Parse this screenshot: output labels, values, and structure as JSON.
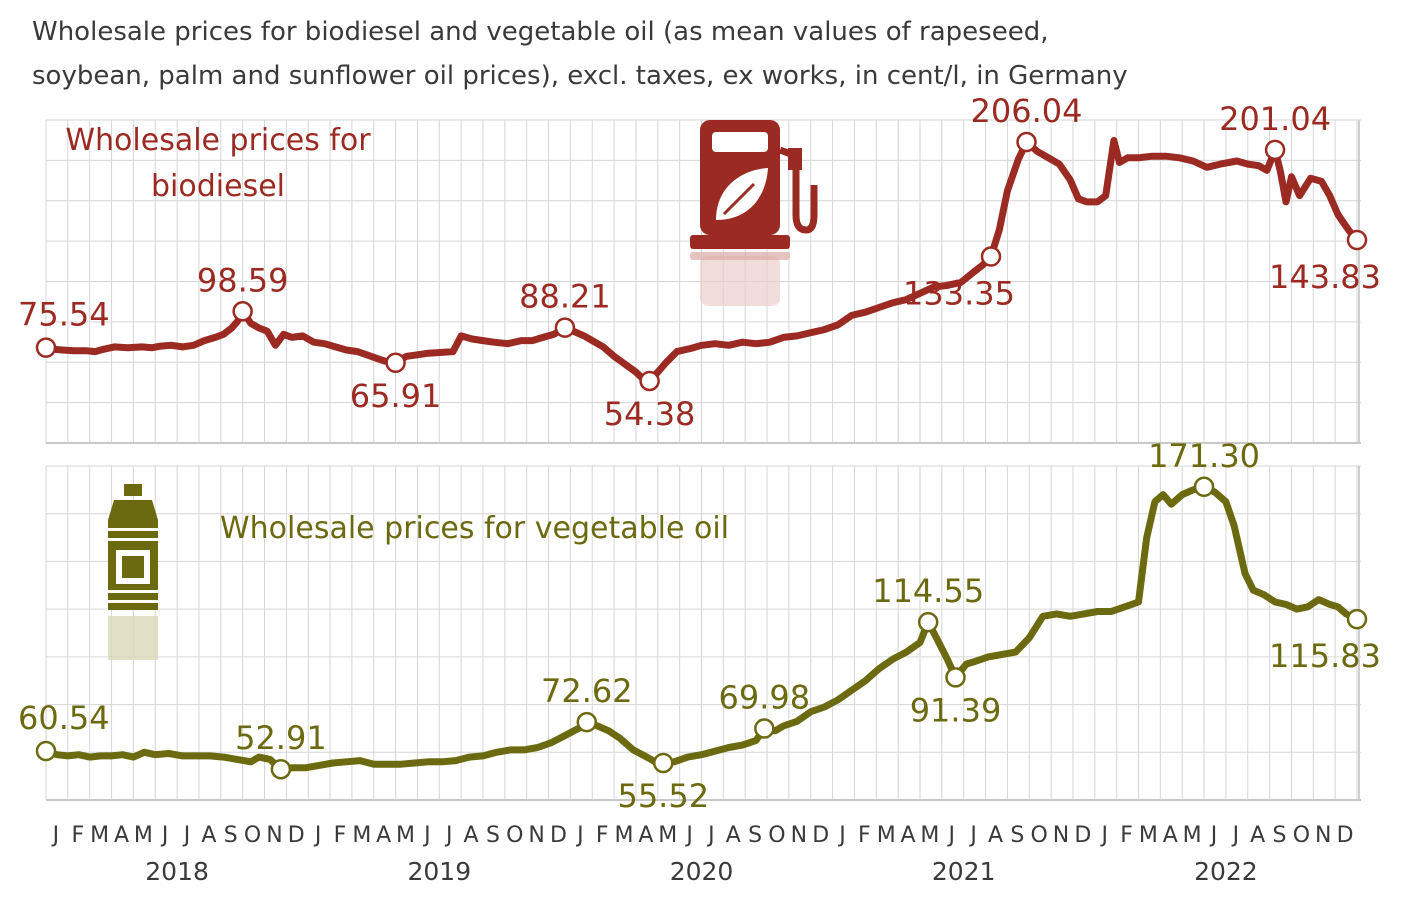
{
  "title_line1": "Wholesale prices for biodiesel and vegetable oil (as mean values of rapeseed,",
  "title_line2": "soybean, palm and sunflower oil prices), excl. taxes, ex works, in cent/l, in Germany",
  "colors": {
    "biodiesel": "#9b2a22",
    "vegetable_oil": "#6b6a10",
    "grid": "#d6d6d6",
    "text": "#3a3a3a"
  },
  "icons": [
    "fuel-pump-leaf-icon",
    "oil-bottle-icon"
  ],
  "month_labels": [
    "J",
    "F",
    "M",
    "A",
    "M",
    "J",
    "J",
    "A",
    "S",
    "O",
    "N",
    "D"
  ],
  "year_labels": [
    "2018",
    "2019",
    "2020",
    "2021",
    "2022"
  ],
  "chart_data": [
    {
      "type": "line",
      "name": "biodiesel",
      "series_label_lines": [
        "Wholesale prices for",
        "biodiesel"
      ],
      "ylim": [
        15,
        220
      ],
      "points": [
        [
          0.0,
          75.54
        ],
        [
          0.3,
          74.5
        ],
        [
          0.6,
          74
        ],
        [
          1.0,
          73.5
        ],
        [
          1.5,
          73.5
        ],
        [
          1.8,
          73
        ],
        [
          2.1,
          74.5
        ],
        [
          2.5,
          76
        ],
        [
          3.0,
          75.5
        ],
        [
          3.5,
          76
        ],
        [
          3.9,
          75.5
        ],
        [
          4.2,
          76.5
        ],
        [
          4.6,
          77
        ],
        [
          5.0,
          76
        ],
        [
          5.4,
          77
        ],
        [
          5.8,
          80
        ],
        [
          6.2,
          82
        ],
        [
          6.5,
          84
        ],
        [
          6.8,
          88
        ],
        [
          7.0,
          92
        ],
        [
          7.2,
          98.59
        ],
        [
          7.5,
          91
        ],
        [
          7.8,
          88
        ],
        [
          8.1,
          86
        ],
        [
          8.4,
          77
        ],
        [
          8.7,
          84
        ],
        [
          9.0,
          82
        ],
        [
          9.4,
          83
        ],
        [
          9.8,
          79
        ],
        [
          10.2,
          78
        ],
        [
          10.6,
          76
        ],
        [
          11.0,
          74
        ],
        [
          11.4,
          73
        ],
        [
          11.9,
          70
        ],
        [
          12.4,
          67
        ],
        [
          12.8,
          65.91
        ],
        [
          13.2,
          70
        ],
        [
          13.6,
          71
        ],
        [
          14.0,
          72
        ],
        [
          14.5,
          72.5
        ],
        [
          14.9,
          73
        ],
        [
          15.2,
          83
        ],
        [
          15.6,
          81
        ],
        [
          16.0,
          80
        ],
        [
          16.4,
          79
        ],
        [
          16.9,
          78
        ],
        [
          17.4,
          80
        ],
        [
          17.8,
          80
        ],
        [
          18.2,
          82
        ],
        [
          18.6,
          84
        ],
        [
          19.0,
          88.21
        ],
        [
          19.3,
          86
        ],
        [
          19.7,
          83
        ],
        [
          20.1,
          79
        ],
        [
          20.4,
          76
        ],
        [
          20.8,
          70
        ],
        [
          21.2,
          65
        ],
        [
          21.6,
          60
        ],
        [
          21.9,
          55
        ],
        [
          22.1,
          54.38
        ],
        [
          22.4,
          60
        ],
        [
          22.7,
          66
        ],
        [
          23.1,
          73
        ],
        [
          23.6,
          75
        ],
        [
          24.0,
          77
        ],
        [
          24.5,
          78
        ],
        [
          25.0,
          77
        ],
        [
          25.5,
          79
        ],
        [
          26.0,
          78
        ],
        [
          26.5,
          79
        ],
        [
          27.0,
          82
        ],
        [
          27.5,
          83
        ],
        [
          28.0,
          85
        ],
        [
          28.5,
          87
        ],
        [
          29.0,
          90
        ],
        [
          29.5,
          96
        ],
        [
          30.0,
          98
        ],
        [
          30.5,
          101
        ],
        [
          31.0,
          104
        ],
        [
          31.5,
          106
        ],
        [
          32.0,
          110
        ],
        [
          32.5,
          114
        ],
        [
          33.0,
          115
        ],
        [
          33.5,
          117
        ],
        [
          34.0,
          124
        ],
        [
          34.3,
          128
        ],
        [
          34.6,
          133.35
        ],
        [
          34.9,
          150
        ],
        [
          35.2,
          175
        ],
        [
          35.6,
          195
        ],
        [
          35.9,
          206.04
        ],
        [
          36.3,
          200
        ],
        [
          36.7,
          196
        ],
        [
          37.1,
          192
        ],
        [
          37.5,
          182
        ],
        [
          37.8,
          170
        ],
        [
          38.1,
          168
        ],
        [
          38.5,
          168
        ],
        [
          38.8,
          172
        ],
        [
          39.1,
          207
        ],
        [
          39.3,
          193
        ],
        [
          39.6,
          196
        ],
        [
          40.0,
          196
        ],
        [
          40.5,
          197
        ],
        [
          41.0,
          197
        ],
        [
          41.5,
          196
        ],
        [
          42.0,
          194
        ],
        [
          42.5,
          190
        ],
        [
          43.0,
          192
        ],
        [
          43.6,
          194
        ],
        [
          44.0,
          192
        ],
        [
          44.4,
          191
        ],
        [
          44.7,
          188
        ],
        [
          45.0,
          201.04
        ],
        [
          45.2,
          187
        ],
        [
          45.4,
          168
        ],
        [
          45.6,
          184
        ],
        [
          45.9,
          172
        ],
        [
          46.3,
          183
        ],
        [
          46.7,
          181
        ],
        [
          47.0,
          172
        ],
        [
          47.3,
          160
        ],
        [
          47.5,
          155
        ],
        [
          47.7,
          150
        ],
        [
          48.0,
          143.83
        ]
      ],
      "annotations": [
        {
          "label": "75.54",
          "x": 0.0,
          "y": 75.54,
          "pos": "above-right"
        },
        {
          "label": "98.59",
          "x": 7.2,
          "y": 98.59,
          "pos": "above"
        },
        {
          "label": "65.91",
          "x": 12.8,
          "y": 65.91,
          "pos": "below"
        },
        {
          "label": "88.21",
          "x": 19.0,
          "y": 88.21,
          "pos": "above"
        },
        {
          "label": "54.38",
          "x": 22.1,
          "y": 54.38,
          "pos": "below"
        },
        {
          "label": "133.35",
          "x": 34.6,
          "y": 133.35,
          "pos": "below-left"
        },
        {
          "label": "206.04",
          "x": 35.9,
          "y": 206.04,
          "pos": "above"
        },
        {
          "label": "201.04",
          "x": 45.0,
          "y": 201.04,
          "pos": "above"
        },
        {
          "label": "143.83",
          "x": 48.0,
          "y": 143.83,
          "pos": "below-left"
        }
      ]
    },
    {
      "type": "line",
      "name": "vegetable_oil",
      "series_label_lines": [
        "Wholesale prices for vegetable oil"
      ],
      "ylim": [
        40,
        180
      ],
      "points": [
        [
          0.0,
          60.54
        ],
        [
          0.4,
          59
        ],
        [
          0.8,
          58.5
        ],
        [
          1.2,
          59
        ],
        [
          1.6,
          58
        ],
        [
          2.0,
          58.5
        ],
        [
          2.4,
          58.5
        ],
        [
          2.8,
          59
        ],
        [
          3.2,
          58
        ],
        [
          3.6,
          60
        ],
        [
          4.0,
          59
        ],
        [
          4.5,
          59.5
        ],
        [
          5.0,
          58.5
        ],
        [
          5.5,
          58.5
        ],
        [
          6.0,
          58.5
        ],
        [
          6.5,
          58
        ],
        [
          7.0,
          57
        ],
        [
          7.5,
          56
        ],
        [
          7.8,
          58
        ],
        [
          8.2,
          57
        ],
        [
          8.6,
          52.91
        ],
        [
          9.0,
          53.5
        ],
        [
          9.5,
          53.5
        ],
        [
          10.0,
          54.5
        ],
        [
          10.5,
          55.5
        ],
        [
          11.0,
          56
        ],
        [
          11.5,
          56.5
        ],
        [
          12.0,
          55
        ],
        [
          12.5,
          55
        ],
        [
          13.0,
          55
        ],
        [
          13.5,
          55.5
        ],
        [
          14.0,
          56
        ],
        [
          14.5,
          56
        ],
        [
          15.0,
          56.5
        ],
        [
          15.5,
          58
        ],
        [
          16.0,
          58.5
        ],
        [
          16.5,
          60
        ],
        [
          17.0,
          61
        ],
        [
          17.5,
          61
        ],
        [
          18.0,
          62
        ],
        [
          18.5,
          64
        ],
        [
          19.0,
          67
        ],
        [
          19.5,
          70
        ],
        [
          19.8,
          72.62
        ],
        [
          20.2,
          71
        ],
        [
          20.6,
          69
        ],
        [
          21.0,
          66
        ],
        [
          21.5,
          61
        ],
        [
          22.0,
          58
        ],
        [
          22.3,
          56
        ],
        [
          22.6,
          55.52
        ],
        [
          23.0,
          56
        ],
        [
          23.5,
          58
        ],
        [
          24.0,
          59
        ],
        [
          24.5,
          60.5
        ],
        [
          25.0,
          62
        ],
        [
          25.5,
          63
        ],
        [
          26.0,
          65
        ],
        [
          26.3,
          69.98
        ],
        [
          26.7,
          69
        ],
        [
          27.0,
          71
        ],
        [
          27.5,
          73
        ],
        [
          28.0,
          77
        ],
        [
          28.5,
          79
        ],
        [
          29.0,
          82
        ],
        [
          29.5,
          86
        ],
        [
          30.0,
          90
        ],
        [
          30.5,
          95
        ],
        [
          31.0,
          99
        ],
        [
          31.5,
          102
        ],
        [
          32.0,
          106
        ],
        [
          32.3,
          114.55
        ],
        [
          32.6,
          108
        ],
        [
          33.0,
          99
        ],
        [
          33.3,
          91.39
        ],
        [
          33.7,
          97
        ],
        [
          34.0,
          98
        ],
        [
          34.5,
          100
        ],
        [
          35.0,
          101
        ],
        [
          35.5,
          102
        ],
        [
          36.0,
          108
        ],
        [
          36.5,
          117
        ],
        [
          37.0,
          118
        ],
        [
          37.5,
          117
        ],
        [
          38.0,
          118
        ],
        [
          38.5,
          119
        ],
        [
          39.0,
          119
        ],
        [
          39.5,
          121
        ],
        [
          40.0,
          123
        ],
        [
          40.3,
          150
        ],
        [
          40.6,
          165
        ],
        [
          40.9,
          168
        ],
        [
          41.2,
          164
        ],
        [
          41.6,
          168
        ],
        [
          42.0,
          170
        ],
        [
          42.4,
          171.3
        ],
        [
          42.8,
          169
        ],
        [
          43.2,
          165
        ],
        [
          43.5,
          155
        ],
        [
          43.9,
          135
        ],
        [
          44.2,
          128
        ],
        [
          44.6,
          126
        ],
        [
          45.0,
          123
        ],
        [
          45.4,
          122
        ],
        [
          45.8,
          120
        ],
        [
          46.2,
          121
        ],
        [
          46.6,
          124
        ],
        [
          47.0,
          122
        ],
        [
          47.3,
          121
        ],
        [
          47.6,
          118
        ],
        [
          48.0,
          115.83
        ]
      ],
      "annotations": [
        {
          "label": "60.54",
          "x": 0.0,
          "y": 60.54,
          "pos": "above-right"
        },
        {
          "label": "52.91",
          "x": 8.6,
          "y": 52.91,
          "pos": "above"
        },
        {
          "label": "72.62",
          "x": 19.8,
          "y": 72.62,
          "pos": "above"
        },
        {
          "label": "55.52",
          "x": 22.6,
          "y": 55.52,
          "pos": "below"
        },
        {
          "label": "69.98",
          "x": 26.3,
          "y": 69.98,
          "pos": "above"
        },
        {
          "label": "114.55",
          "x": 32.3,
          "y": 114.55,
          "pos": "above"
        },
        {
          "label": "91.39",
          "x": 33.3,
          "y": 91.39,
          "pos": "below"
        },
        {
          "label": "171.30",
          "x": 42.4,
          "y": 171.3,
          "pos": "above"
        },
        {
          "label": "115.83",
          "x": 48.0,
          "y": 115.83,
          "pos": "below-left"
        }
      ]
    }
  ]
}
